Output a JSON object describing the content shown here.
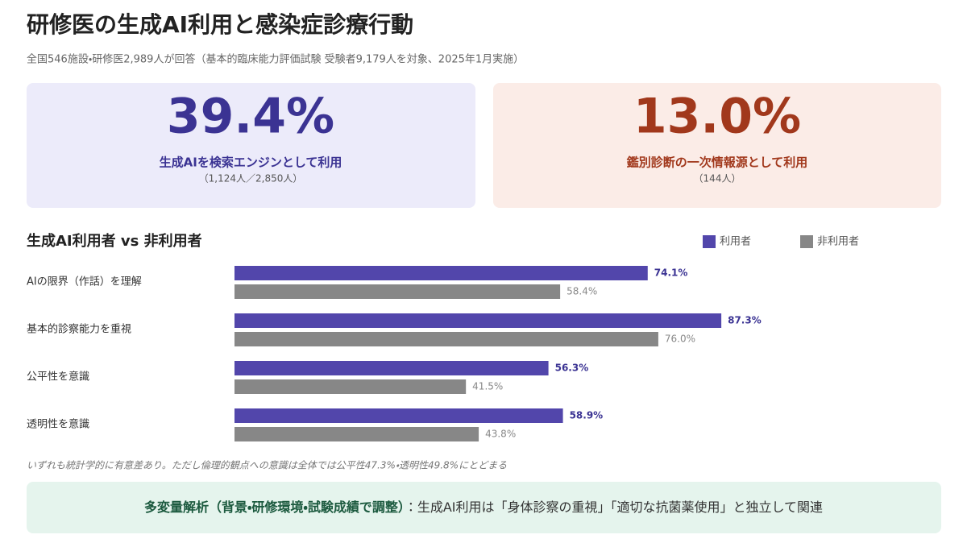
{
  "header": {
    "title": "研修医の生成AI利用と感染症診療行動",
    "subtitle": "全国546施設・研修医2,989人が回答（基本的臨床能力評価試験 受験者9,179人を対象、2025年1月実施）"
  },
  "kpis": [
    {
      "value": "39.4%",
      "label": "生成AIを検索エンジンとして利用",
      "detail": "（1,124人／2,850人）"
    },
    {
      "value": "13.0%",
      "label": "鑑別診断の一次情報源として利用",
      "detail": "（144人）"
    }
  ],
  "chart_data": {
    "type": "bar",
    "orientation": "horizontal",
    "title": "生成AI利用者 vs 非利用者",
    "categories": [
      "AIの限界（作話）を理解",
      "基本的診察能力を重視",
      "公平性を意識",
      "透明性を意識"
    ],
    "series": [
      {
        "name": "利用者",
        "color": "#5246ab",
        "values": [
          74.1,
          87.3,
          56.3,
          58.9
        ],
        "value_labels": [
          "74.1%",
          "87.3%",
          "56.3%",
          "58.9%"
        ]
      },
      {
        "name": "非利用者",
        "color": "#878787",
        "values": [
          58.4,
          76.0,
          41.5,
          43.8
        ],
        "value_labels": [
          "58.4%",
          "76.0%",
          "41.5%",
          "43.8%"
        ]
      }
    ],
    "legend": "top-right",
    "grid": false
  },
  "footnote": "いずれも統計学的に有意差あり。ただし倫理的観点への意識は全体では公平性47.3%・透明性49.8%にとどまる",
  "conclusion": {
    "lead": "多変量解析（背景・研修環境・試験成績で調整）",
    "text": "：生成AI利用は「身体診察の重視」「適切な抗菌薬使用」と独立して関連"
  }
}
